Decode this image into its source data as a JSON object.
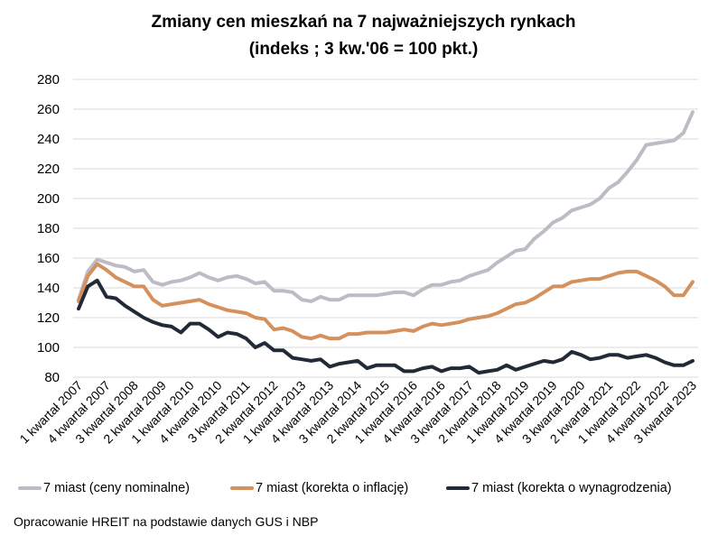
{
  "chart_data": {
    "type": "line",
    "title": "Zmiany cen mieszkań na 7 najważniejszych rynkach",
    "subtitle": "(indeks ; 3 kw.'06 = 100 pkt.)",
    "xlabel": "",
    "ylabel": "",
    "ylim": [
      80,
      280
    ],
    "yticks": [
      "280",
      "260",
      "240",
      "220",
      "200",
      "180",
      "160",
      "140",
      "120",
      "100",
      "80"
    ],
    "grid": true,
    "legend_position": "bottom",
    "x_tick_labels": [
      "1 kwartał 2007",
      "4 kwartał 2007",
      "3 kwartał 2008",
      "2 kwartał 2009",
      "1 kwartał 2010",
      "4 kwartał 2010",
      "3 kwartał 2011",
      "2 kwartał 2012",
      "1 kwartał 2013",
      "4 kwartał 2013",
      "3 kwartał 2014",
      "2 kwartał 2015",
      "1 kwartał 2016",
      "4 kwartał 2016",
      "3 kwartał 2017",
      "2 kwartał 2018",
      "1 kwartał 2019",
      "4 kwartał 2019",
      "3 kwartał 2020",
      "2 kwartał 2021",
      "1 kwartał 2022",
      "4 kwartał 2022",
      "3 kwartał 2023"
    ],
    "x_tick_every": 3,
    "n_points": 67,
    "series": [
      {
        "name": "7 miast (ceny nominalne)",
        "color": "#bfbac4",
        "values": [
          132,
          151,
          159,
          157,
          155,
          154,
          151,
          152,
          144,
          142,
          144,
          145,
          147,
          150,
          147,
          145,
          147,
          148,
          146,
          143,
          144,
          138,
          138,
          137,
          132,
          131,
          134,
          132,
          132,
          135,
          135,
          135,
          135,
          136,
          137,
          137,
          135,
          139,
          142,
          142,
          144,
          145,
          148,
          150,
          152,
          157,
          161,
          165,
          166,
          173,
          178,
          184,
          187,
          192,
          194,
          196,
          200,
          207,
          211,
          218,
          226,
          236,
          237,
          238,
          239,
          244,
          258
        ]
      },
      {
        "name": "7 miast (korekta o inflację)",
        "color": "#d4915e",
        "values": [
          131,
          148,
          156,
          152,
          147,
          144,
          141,
          141,
          132,
          128,
          129,
          130,
          131,
          132,
          129,
          127,
          125,
          124,
          123,
          120,
          119,
          112,
          113,
          111,
          107,
          106,
          108,
          106,
          106,
          109,
          109,
          110,
          110,
          110,
          111,
          112,
          111,
          114,
          116,
          115,
          116,
          117,
          119,
          120,
          121,
          123,
          126,
          129,
          130,
          133,
          137,
          141,
          141,
          144,
          145,
          146,
          146,
          148,
          150,
          151,
          151,
          148,
          145,
          141,
          135,
          135,
          144
        ]
      },
      {
        "name": "7 miast (korekta o wynagrodzenia)",
        "color": "#222a37",
        "values": [
          126,
          141,
          145,
          134,
          133,
          128,
          124,
          120,
          117,
          115,
          114,
          110,
          116,
          116,
          112,
          107,
          110,
          109,
          106,
          100,
          103,
          98,
          98,
          93,
          92,
          91,
          92,
          87,
          89,
          90,
          91,
          86,
          88,
          88,
          88,
          84,
          84,
          86,
          87,
          84,
          86,
          86,
          87,
          83,
          84,
          85,
          88,
          85,
          87,
          89,
          91,
          90,
          92,
          97,
          95,
          92,
          93,
          95,
          95,
          93,
          94,
          95,
          93,
          90,
          88,
          88,
          91
        ]
      }
    ],
    "gridline_color": "#d9d9d9"
  },
  "footer": {
    "source": "Opracowanie HREIT na podstawie danych GUS i NBP"
  }
}
